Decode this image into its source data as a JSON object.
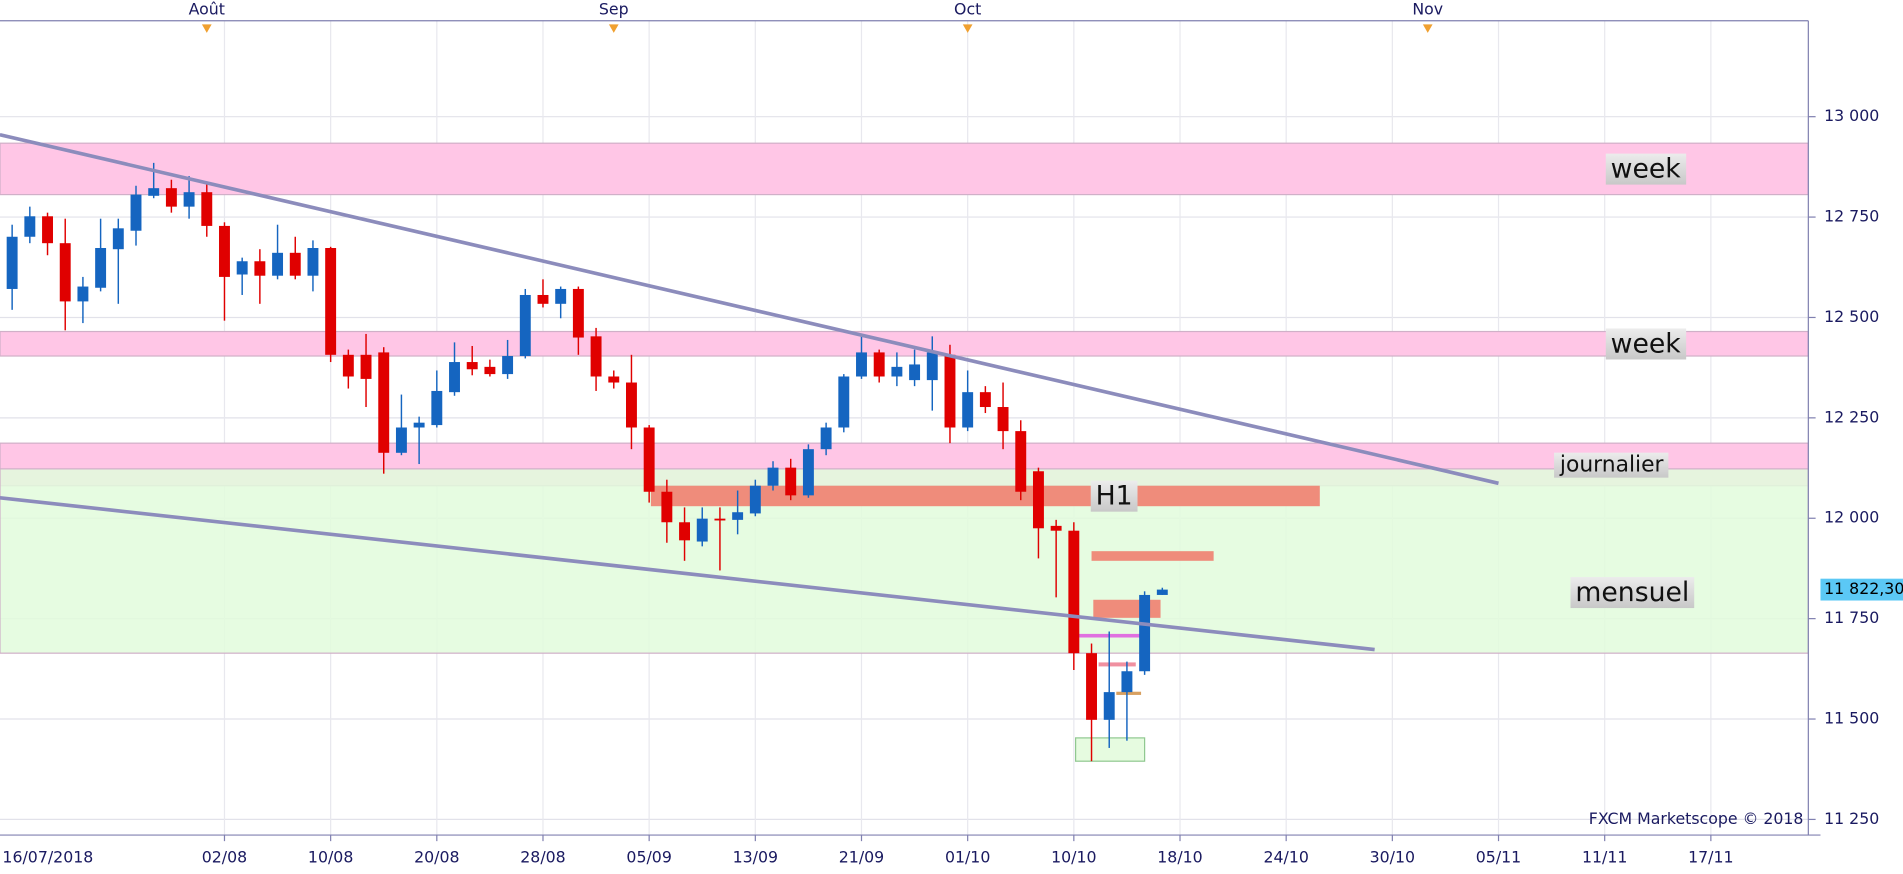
{
  "chart_data": {
    "type": "candlestick",
    "categories": [
      "16/07/2018",
      null,
      null,
      null,
      null,
      null,
      null,
      null,
      null,
      null,
      null,
      null,
      "02/08",
      null,
      null,
      null,
      null,
      null,
      "10/08",
      null,
      null,
      null,
      null,
      null,
      "20/08",
      null,
      null,
      null,
      null,
      null,
      "28/08",
      null,
      null,
      null,
      null,
      null,
      "05/09",
      null,
      null,
      null,
      null,
      null,
      "13/09",
      null,
      null,
      null,
      null,
      null,
      "21/09",
      null,
      null,
      null,
      null,
      null,
      "01/10",
      null,
      null,
      null,
      null,
      null,
      "10/10",
      null,
      null,
      null,
      null,
      null,
      "18/10",
      null,
      null,
      null,
      null,
      null,
      "24/10",
      null,
      null,
      null,
      null,
      null,
      "30/10",
      null,
      null,
      null,
      null,
      null,
      "05/11",
      null,
      null,
      null,
      null,
      null,
      "11/11",
      null,
      null,
      null,
      null,
      null,
      "17/11",
      null,
      null,
      null,
      null,
      null
    ],
    "open": [
      12571,
      12701,
      12752,
      12685,
      12540,
      12574,
      12670,
      12716,
      12803,
      12822,
      12776,
      12812,
      12728,
      12607,
      12640,
      12604,
      12661,
      12604,
      12673,
      12407,
      12407,
      12413,
      12163,
      12226,
      12232,
      12314,
      12389,
      12377,
      12359,
      12404,
      12556,
      12534,
      12571,
      12453,
      12353,
      12338,
      12226,
      12066,
      11990,
      11942,
      11999,
      11996,
      12012,
      12081,
      12126,
      12057,
      12172,
      12226,
      12353,
      12413,
      12353,
      12344,
      12344,
      12407,
      12226,
      12314,
      12277,
      12217,
      12117,
      11981,
      11969,
      11664,
      11498,
      11567,
      11619,
      11809,
      null,
      null,
      null,
      null,
      null,
      null,
      null,
      null,
      null,
      null,
      null,
      null,
      null,
      null,
      null,
      null,
      null,
      null,
      null,
      null,
      null,
      null,
      null,
      null,
      null,
      null,
      null,
      null,
      null,
      null,
      null,
      null,
      null,
      null,
      null,
      null
    ],
    "high": [
      12731,
      12776,
      12761,
      12746,
      12601,
      12746,
      12746,
      12828,
      12885,
      12843,
      12852,
      12837,
      12737,
      12649,
      12670,
      12731,
      12701,
      12692,
      12676,
      12420,
      12459,
      12426,
      12308,
      12253,
      12368,
      12438,
      12429,
      12395,
      12444,
      12571,
      12595,
      12577,
      12577,
      12474,
      12368,
      12407,
      12232,
      12096,
      12027,
      12027,
      12027,
      12069,
      12096,
      12142,
      12148,
      12184,
      12238,
      12359,
      12459,
      12420,
      12413,
      12420,
      12453,
      12432,
      12368,
      12329,
      12338,
      12244,
      12126,
      11996,
      11990,
      11688,
      11718,
      11643,
      11818,
      11827,
      null,
      null,
      null,
      null,
      null,
      null,
      null,
      null,
      null,
      null,
      null,
      null,
      null,
      null,
      null,
      null,
      null,
      null,
      null,
      null,
      null,
      null,
      null,
      null,
      null,
      null,
      null,
      null,
      null,
      null,
      null,
      null,
      null,
      null,
      null,
      null
    ],
    "low": [
      12519,
      12685,
      12655,
      12468,
      12486,
      12565,
      12534,
      12679,
      12797,
      12761,
      12746,
      12701,
      12492,
      12556,
      12534,
      12595,
      12595,
      12565,
      12389,
      12323,
      12277,
      12111,
      12157,
      12135,
      12226,
      12305,
      12356,
      12353,
      12347,
      12398,
      12525,
      12498,
      12407,
      12317,
      12323,
      12172,
      12039,
      11939,
      11894,
      11930,
      11870,
      11960,
      12005,
      12069,
      12045,
      12051,
      12157,
      12214,
      12347,
      12338,
      12329,
      12329,
      12268,
      12187,
      12217,
      12262,
      12172,
      12045,
      11900,
      11803,
      11622,
      11395,
      11428,
      11446,
      11610,
      11809,
      null,
      null,
      null,
      null,
      null,
      null,
      null,
      null,
      null,
      null,
      null,
      null,
      null,
      null,
      null,
      null,
      null,
      null,
      null,
      null,
      null,
      null,
      null,
      null,
      null,
      null,
      null,
      null,
      null,
      null,
      null,
      null,
      null,
      null,
      null,
      null
    ],
    "close": [
      12701,
      12752,
      12685,
      12540,
      12577,
      12673,
      12722,
      12806,
      12822,
      12776,
      12812,
      12728,
      12601,
      12640,
      12604,
      12661,
      12604,
      12673,
      12407,
      12353,
      12347,
      12163,
      12226,
      12238,
      12317,
      12389,
      12371,
      12359,
      12404,
      12556,
      12534,
      12571,
      12450,
      12353,
      12338,
      12226,
      12066,
      11990,
      11945,
      11999,
      11996,
      12015,
      12081,
      12126,
      12057,
      12172,
      12226,
      12353,
      12413,
      12353,
      12377,
      12383,
      12413,
      12226,
      12314,
      12277,
      12217,
      12066,
      11975,
      11969,
      11664,
      11498,
      11567,
      11619,
      11809,
      11822.3,
      null,
      null,
      null,
      null,
      null,
      null,
      null,
      null,
      null,
      null,
      null,
      null,
      null,
      null,
      null,
      null,
      null,
      null,
      null,
      null,
      null,
      null,
      null,
      null,
      null,
      null,
      null,
      null,
      null,
      null,
      null,
      null,
      null,
      null,
      null,
      null
    ],
    "up_color": "#1565c0",
    "down_color": "#e00000",
    "ylim": [
      11211,
      13239
    ],
    "yticks": [
      {
        "value": 11250,
        "label": "11 250"
      },
      {
        "value": 11500,
        "label": "11 500"
      },
      {
        "value": 11750,
        "label": "11 750"
      },
      {
        "value": 12000,
        "label": "12 000"
      },
      {
        "value": 12250,
        "label": "12 250"
      },
      {
        "value": 12500,
        "label": "12 500"
      },
      {
        "value": 12750,
        "label": "12 750"
      },
      {
        "value": 13000,
        "label": "13 000"
      }
    ],
    "grid": true,
    "months": [
      {
        "label": "Août",
        "x": 11
      },
      {
        "label": "Sep",
        "x": 34
      },
      {
        "label": "Oct",
        "x": 54
      },
      {
        "label": "Nov",
        "x": 80
      }
    ],
    "zones": [
      {
        "label": "week",
        "from": 12806,
        "to": 12934,
        "color": "#ffc6e6"
      },
      {
        "label": "week",
        "from": 12404,
        "to": 12465,
        "color": "#ffc6e6"
      },
      {
        "label": "journalier",
        "from": 12081,
        "to": 12187,
        "color": "#ffc6e6"
      },
      {
        "label": "mensuel",
        "from": 11664,
        "to": 12123,
        "color": "#e2fbdc"
      },
      {
        "label": "H1",
        "from": 12030,
        "to": 12081,
        "x": [
          36.1,
          73.9
        ],
        "color": "#f08070"
      },
      {
        "from": 11894,
        "to": 11918,
        "x": [
          61.0,
          67.9
        ],
        "color": "#f08070"
      },
      {
        "from": 11752,
        "to": 11797,
        "x": [
          61.1,
          64.9
        ],
        "color": "#f08070"
      },
      {
        "from": 11703,
        "to": 11712,
        "x": [
          60.2,
          63.8
        ],
        "color": "#e070e0"
      },
      {
        "from": 11631,
        "to": 11641,
        "x": [
          61.4,
          63.5
        ],
        "color": "#f090a0"
      },
      {
        "from": 11560,
        "to": 11568,
        "x": [
          62.4,
          63.8
        ],
        "color": "#d8a060"
      },
      {
        "from": 11395,
        "to": 11453,
        "x": [
          60.1,
          64.0
        ],
        "color": "#e6fbe0"
      }
    ],
    "trend_lines": [
      {
        "x": [
          -0.69,
          84.0
        ],
        "y": [
          12955,
          12087
        ],
        "color": "#8c8cbc"
      },
      {
        "x": [
          -0.69,
          77.0
        ],
        "y": [
          12051,
          11673
        ],
        "color": "#8c8cbc"
      }
    ],
    "last_price": {
      "value": 11822.3,
      "label": "11 822,30",
      "color": "#5bc8f5"
    },
    "credit": "FXCM Marketscope © 2018"
  }
}
